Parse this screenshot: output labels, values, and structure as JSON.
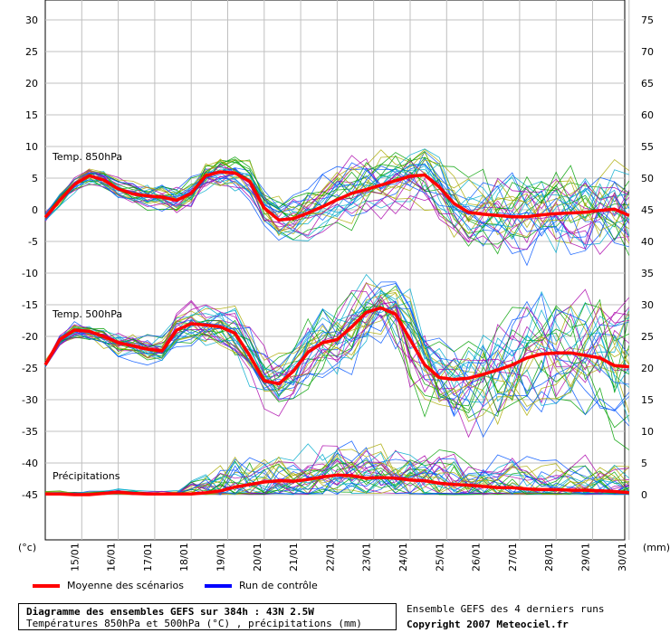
{
  "chart_data": {
    "type": "line",
    "title": "Diagramme des ensembles GEFS sur 384h : 43N 2.5W",
    "subtitle": "Températures 850hPa et 500hPa (°C) , précipitations (mm)",
    "x_ticks": [
      "15/01",
      "16/01",
      "17/01",
      "18/01",
      "19/01",
      "20/01",
      "21/01",
      "22/01",
      "23/01",
      "24/01",
      "25/01",
      "26/01",
      "27/01",
      "28/01",
      "29/01",
      "30/01"
    ],
    "x_range_days": [
      0,
      16
    ],
    "y_left_label": "(°c)",
    "y_right_label": "(mm)",
    "y_left_ticks": [
      30,
      25,
      20,
      15,
      10,
      5,
      0,
      -5,
      -10,
      -15,
      -20,
      -25,
      -30,
      -35,
      -40,
      -45
    ],
    "y_right_ticks": [
      75,
      70,
      65,
      60,
      55,
      50,
      45,
      40,
      35,
      30,
      25,
      20,
      15,
      10,
      5,
      0
    ],
    "y_left_range": [
      -45,
      30
    ],
    "y_right_range": [
      0,
      75
    ],
    "grid": true,
    "panel_labels": {
      "t850": "Temp. 850hPa",
      "t500": "Temp. 500hPa",
      "precip": "Précipitations"
    },
    "series": [
      {
        "key": "t850_mean",
        "name": "Moyenne des scénarios",
        "axis": "left",
        "x_days": [
          0,
          0.4,
          0.8,
          1.2,
          1.6,
          2,
          2.4,
          2.8,
          3.2,
          3.6,
          4,
          4.4,
          4.8,
          5.2,
          5.6,
          6,
          6.4,
          6.8,
          7.2,
          7.6,
          8,
          8.4,
          8.8,
          9.2,
          9.6,
          10,
          10.4,
          10.8,
          11.2,
          11.6,
          12,
          12.4,
          12.8,
          13.2,
          13.6,
          14,
          14.4,
          14.8,
          15.2,
          15.6,
          16
        ],
        "values": [
          -1.2,
          1.5,
          4.0,
          5.4,
          4.7,
          3.3,
          2.5,
          2.2,
          2.0,
          1.5,
          2.6,
          5.4,
          6.0,
          5.8,
          4.5,
          0.3,
          -1.6,
          -1.4,
          -0.5,
          0.5,
          1.6,
          2.6,
          3.2,
          3.9,
          4.6,
          5.3,
          5.5,
          3.6,
          1.0,
          -0.4,
          -0.7,
          -0.9,
          -1.1,
          -1.1,
          -0.8,
          -0.6,
          -0.5,
          -0.4,
          -0.1,
          0.1,
          -0.9
        ]
      },
      {
        "key": "t500_mean",
        "name": "Moyenne des scénarios",
        "axis": "left",
        "x_days": [
          0,
          0.4,
          0.8,
          1.2,
          1.6,
          2,
          2.4,
          2.8,
          3.2,
          3.6,
          4,
          4.4,
          4.8,
          5.2,
          5.6,
          6,
          6.4,
          6.8,
          7.2,
          7.6,
          8,
          8.4,
          8.8,
          9.2,
          9.6,
          10,
          10.4,
          10.8,
          11.2,
          11.6,
          12,
          12.4,
          12.8,
          13.2,
          13.6,
          14,
          14.4,
          14.8,
          15.2,
          15.6,
          16
        ],
        "values": [
          -24.5,
          -20.5,
          -19.0,
          -19.2,
          -20.0,
          -21.0,
          -21.5,
          -22.0,
          -22.3,
          -19.0,
          -18.0,
          -18.2,
          -18.5,
          -19.5,
          -23.0,
          -27.0,
          -27.5,
          -25.5,
          -22.5,
          -21.0,
          -20.5,
          -18.5,
          -16.2,
          -15.5,
          -16.5,
          -20.5,
          -24.5,
          -26.5,
          -26.8,
          -26.6,
          -26.0,
          -25.3,
          -24.5,
          -23.4,
          -22.8,
          -22.6,
          -22.6,
          -23.0,
          -23.4,
          -24.6,
          -24.8
        ]
      },
      {
        "key": "precip_mean",
        "name": "Moyenne des scénarios",
        "axis": "right",
        "x_days": [
          0,
          0.4,
          0.8,
          1.2,
          1.6,
          2,
          2.4,
          2.8,
          3.2,
          3.6,
          4,
          4.4,
          4.8,
          5.2,
          5.6,
          6,
          6.4,
          6.8,
          7.2,
          7.6,
          8,
          8.4,
          8.8,
          9.2,
          9.6,
          10,
          10.4,
          10.8,
          11.2,
          11.6,
          12,
          12.4,
          12.8,
          13.2,
          13.6,
          14,
          14.4,
          14.8,
          15.2,
          15.6,
          16
        ],
        "values": [
          0.1,
          0.1,
          0,
          0,
          0.2,
          0.4,
          0.2,
          0.1,
          0.1,
          0.1,
          0.1,
          0.3,
          0.6,
          1.2,
          1.6,
          2.0,
          2.2,
          2.1,
          2.4,
          2.8,
          3.1,
          3.0,
          2.6,
          2.7,
          2.6,
          2.3,
          2.2,
          1.8,
          1.6,
          1.5,
          1.3,
          1.1,
          1.1,
          0.9,
          0.8,
          0.8,
          0.7,
          0.7,
          0.6,
          0.5,
          0.3
        ]
      }
    ],
    "legend": {
      "entries": [
        {
          "label": "Moyenne des scénarios",
          "color": "#ff0000"
        },
        {
          "label": "Run de contrôle",
          "color": "#0000ff"
        }
      ]
    },
    "colors": {
      "mean": "#ff0000",
      "control": "#0000ff",
      "grid": "#c0c0c0",
      "members": [
        "#00a000",
        "#00aacc",
        "#aa00aa",
        "#aaaa00",
        "#0055ff"
      ]
    }
  },
  "footer": {
    "side_line1": "Ensemble GEFS des 4 derniers runs",
    "copyright": "Copyright 2007 Meteociel.fr"
  }
}
